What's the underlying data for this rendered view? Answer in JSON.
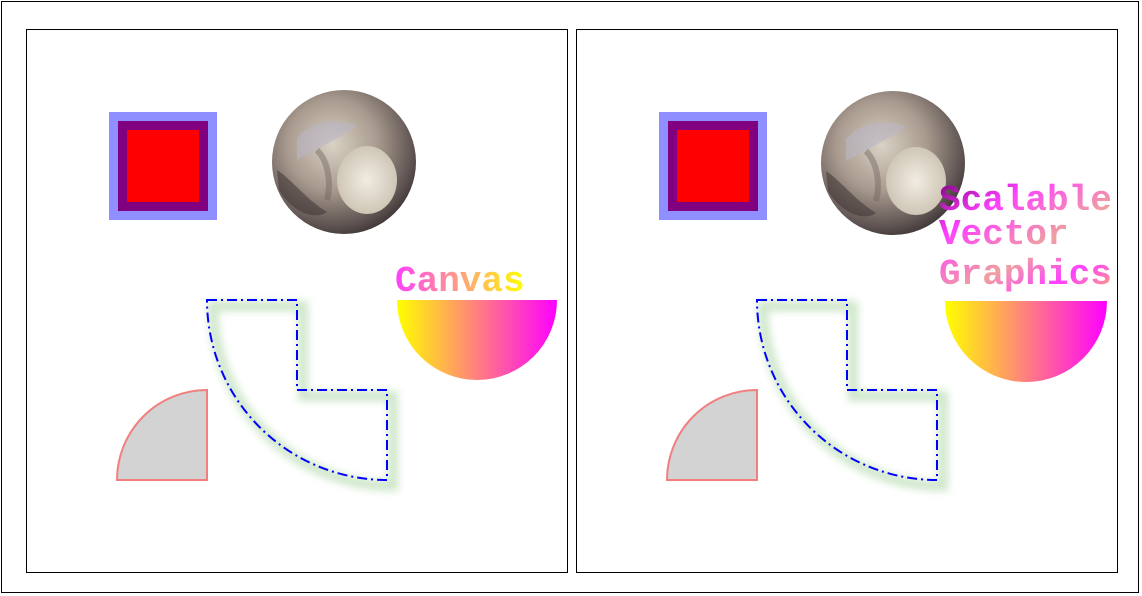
{
  "panels": [
    {
      "id": "canvas",
      "label_lines": [
        "Canvas"
      ]
    },
    {
      "id": "svg",
      "label_lines": [
        "Scalable",
        "Vector",
        "Graphics"
      ]
    }
  ],
  "colors": {
    "square_fill": "#ff0000",
    "square_stroke_inner": "#800080",
    "square_stroke_outer": "#8f8fff",
    "dashed_path_stroke": "#0000ff",
    "dashed_path_shadow": "#b9ddb3",
    "gray_quarter_fill": "#d3d3d3",
    "gray_quarter_stroke": "#f08080",
    "gradient_start": "#ffff00",
    "gradient_end": "#ff00ff",
    "text_gradient_start": "#ff00ff",
    "text_gradient_end": "#ffff00"
  },
  "images": [
    {
      "name": "pluto-planet-image"
    }
  ]
}
